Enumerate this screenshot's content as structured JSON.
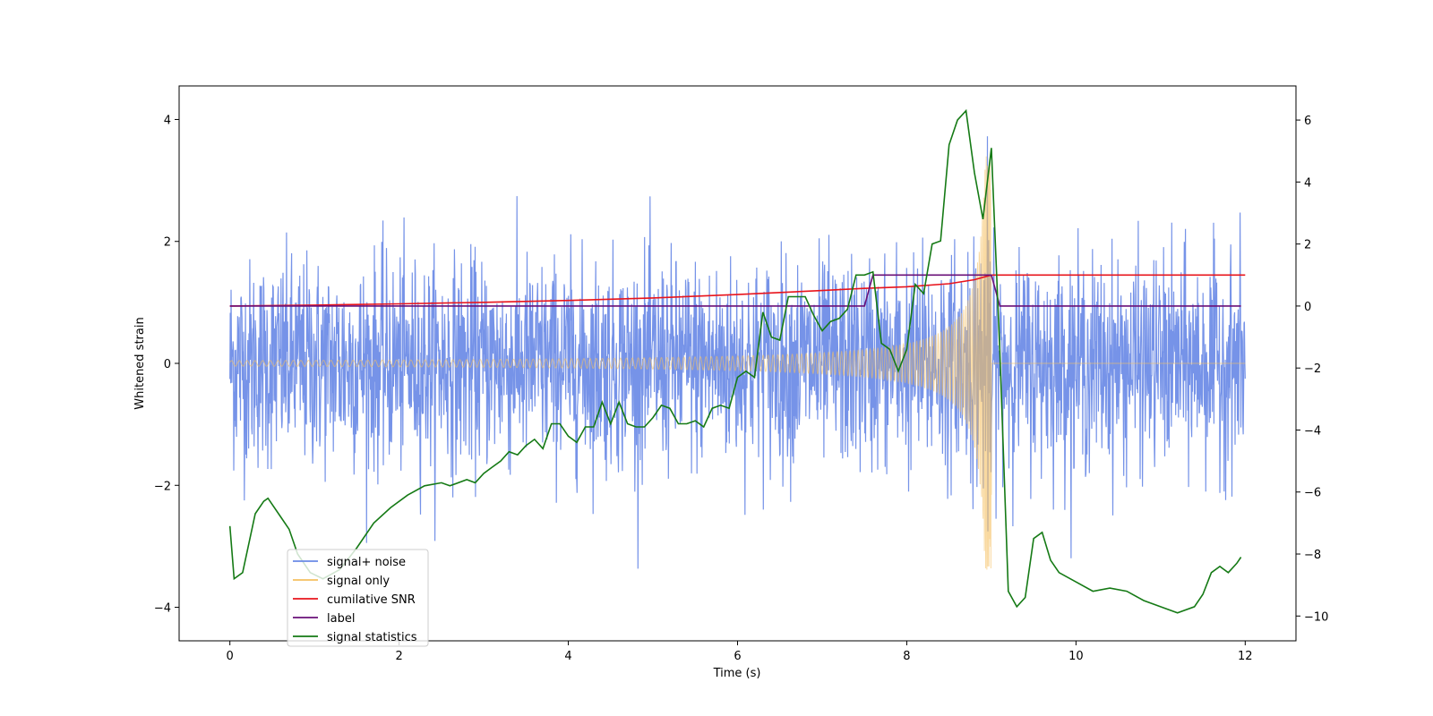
{
  "chart_data": {
    "type": "line",
    "title": "",
    "xlabel": "Time (s)",
    "ylabel": "Whitened strain",
    "y2label": "",
    "xlim": [
      -0.6,
      12.6
    ],
    "ylim": [
      -4.55,
      4.55
    ],
    "y2lim": [
      -10.8,
      7.1
    ],
    "xticks": [
      0,
      2,
      4,
      6,
      8,
      10,
      12
    ],
    "yticks": [
      -4,
      -2,
      0,
      2,
      4
    ],
    "y2ticks": [
      -10,
      -8,
      -6,
      -4,
      -2,
      0,
      2,
      4,
      6
    ],
    "grid": false,
    "legend_position": "lower-left",
    "colors": {
      "noise": "#6a8ae6",
      "signal": "#f5c060",
      "snr": "#e8141c",
      "label": "#6a1078",
      "stat": "#157a15"
    },
    "series": [
      {
        "name": "signal+ noise",
        "axis": "left",
        "description_values": {
          "time_range": [
            0,
            12
          ],
          "noise_std": 0.85,
          "noise_peak_max": 4.15,
          "noise_peak_min": -4.15
        }
      },
      {
        "name": "signal only",
        "axis": "left",
        "description_values": {
          "time_range": [
            0,
            12
          ],
          "chirp_end": 9.0,
          "amplitude_start": 0.05,
          "amplitude_peak": 3.4
        }
      },
      {
        "name": "cumilative SNR",
        "axis": "right",
        "x": [
          0,
          1,
          2,
          3,
          4,
          5,
          6,
          7,
          7.5,
          8,
          8.5,
          8.8,
          9.0,
          9.02,
          10,
          11,
          12
        ],
        "y": [
          0,
          0.03,
          0.07,
          0.12,
          0.18,
          0.26,
          0.37,
          0.5,
          0.57,
          0.62,
          0.72,
          0.85,
          1.0,
          1.0,
          1.0,
          1.0,
          1.0
        ]
      },
      {
        "name": "label",
        "axis": "right",
        "x": [
          0,
          7.5,
          7.6,
          9.0,
          9.1,
          11.95
        ],
        "y": [
          0,
          0,
          1,
          1,
          0,
          0
        ]
      },
      {
        "name": "signal statistics",
        "axis": "right",
        "x": [
          0,
          0.05,
          0.15,
          0.3,
          0.4,
          0.45,
          0.6,
          0.7,
          0.8,
          0.95,
          1.1,
          1.3,
          1.5,
          1.7,
          1.9,
          2.1,
          2.3,
          2.5,
          2.6,
          2.8,
          2.9,
          3.0,
          3.1,
          3.2,
          3.3,
          3.4,
          3.5,
          3.6,
          3.7,
          3.8,
          3.9,
          4.0,
          4.1,
          4.2,
          4.3,
          4.4,
          4.5,
          4.6,
          4.7,
          4.8,
          4.9,
          5.0,
          5.1,
          5.2,
          5.3,
          5.4,
          5.5,
          5.6,
          5.7,
          5.8,
          5.9,
          6.0,
          6.1,
          6.2,
          6.3,
          6.4,
          6.5,
          6.6,
          6.7,
          6.8,
          6.9,
          7.0,
          7.1,
          7.2,
          7.3,
          7.4,
          7.5,
          7.6,
          7.7,
          7.8,
          7.9,
          8.0,
          8.1,
          8.2,
          8.3,
          8.4,
          8.5,
          8.6,
          8.7,
          8.8,
          8.9,
          9.0,
          9.1,
          9.2,
          9.3,
          9.4,
          9.5,
          9.6,
          9.7,
          9.8,
          10.0,
          10.2,
          10.4,
          10.6,
          10.8,
          11.0,
          11.2,
          11.4,
          11.5,
          11.6,
          11.7,
          11.8,
          11.9,
          11.95
        ],
        "y": [
          -7.1,
          -8.8,
          -8.6,
          -6.7,
          -6.3,
          -6.2,
          -6.8,
          -7.2,
          -8.0,
          -8.6,
          -8.8,
          -8.5,
          -7.8,
          -7.0,
          -6.5,
          -6.1,
          -5.8,
          -5.7,
          -5.8,
          -5.6,
          -5.7,
          -5.4,
          -5.2,
          -5.0,
          -4.7,
          -4.8,
          -4.5,
          -4.3,
          -4.6,
          -3.8,
          -3.8,
          -4.2,
          -4.4,
          -3.9,
          -3.9,
          -3.1,
          -3.8,
          -3.1,
          -3.8,
          -3.9,
          -3.9,
          -3.6,
          -3.2,
          -3.3,
          -3.8,
          -3.8,
          -3.7,
          -3.9,
          -3.3,
          -3.2,
          -3.3,
          -2.3,
          -2.1,
          -2.3,
          -0.2,
          -1.0,
          -1.1,
          0.3,
          0.3,
          0.3,
          -0.3,
          -0.8,
          -0.5,
          -0.4,
          -0.1,
          1.0,
          1.0,
          1.1,
          -1.2,
          -1.4,
          -2.1,
          -1.4,
          0.7,
          0.4,
          2.0,
          2.1,
          5.2,
          6.0,
          6.3,
          4.3,
          2.8,
          5.1,
          -1.5,
          -9.2,
          -9.7,
          -9.4,
          -7.5,
          -7.3,
          -8.2,
          -8.6,
          -8.9,
          -9.2,
          -9.1,
          -9.2,
          -9.5,
          -9.7,
          -9.9,
          -9.7,
          -9.3,
          -8.6,
          -8.4,
          -8.6,
          -8.3,
          -8.1
        ]
      }
    ]
  }
}
